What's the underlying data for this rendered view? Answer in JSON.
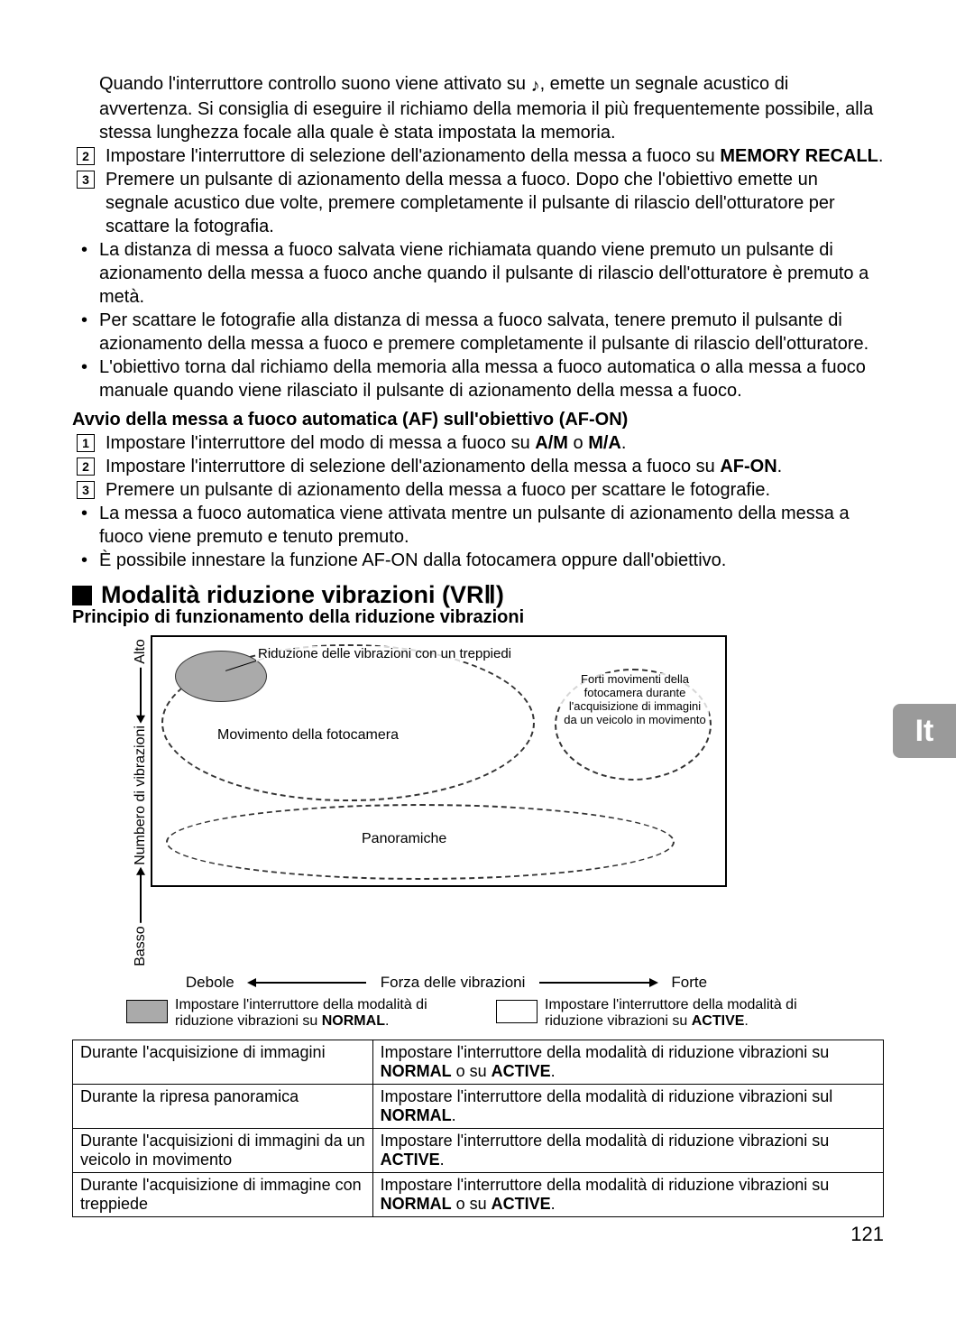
{
  "lang_tab": "It",
  "page_number": "121",
  "intro_para": {
    "line": "Quando l'interruttore controllo suono viene attivato su",
    "sound_glyph": "♪",
    "rest": ", emette un segnale acustico di avvertenza. Si consiglia di eseguire il richiamo della memoria il più frequentemente possibile, alla stessa lunghezza focale alla quale è stata impostata la memoria."
  },
  "item2": {
    "num": "2",
    "text": "Impostare l'interruttore di selezione dell'azionamento della messa a fuoco su ",
    "bold": "MEMORY RECALL",
    "after": "."
  },
  "item3": {
    "num": "3",
    "text": "Premere un pulsante di azionamento della messa a fuoco. Dopo che l'obiettivo emette un segnale acustico due volte, premere completamente il pulsante di rilascio dell'otturatore per scattare la fotografia."
  },
  "bullets_a": [
    "La distanza di messa a fuoco salvata viene richiamata quando viene premuto un pulsante di azionamento della messa a fuoco anche quando il pulsante di rilascio dell'otturatore è premuto a metà.",
    "Per scattare le fotografie alla distanza di messa a fuoco salvata, tenere premuto il pulsante di azionamento della messa a fuoco e premere completamente il pulsante di rilascio dell'otturatore.",
    "L'obiettivo torna dal richiamo della memoria alla messa a fuoco automatica o alla messa a fuoco manuale quando viene rilasciato il pulsante di azionamento della messa a fuoco."
  ],
  "subheading1": "Avvio della messa a fuoco automatica (AF) sull'obiettivo (AF-ON)",
  "afon_items": [
    {
      "num": "1",
      "pre": "Impostare l'interruttore del modo di messa a fuoco su ",
      "bold": "A/M",
      "mid": " o ",
      "bold2": "M/A",
      "after": "."
    },
    {
      "num": "2",
      "pre": "Impostare l'interruttore di selezione dell'azionamento della messa a fuoco su ",
      "bold": "AF-ON",
      "after": "."
    },
    {
      "num": "3",
      "pre": "Premere un pulsante di azionamento della messa a fuoco per scattare le fotografie.",
      "bold": "",
      "after": ""
    }
  ],
  "bullets_b": [
    "La messa a fuoco automatica viene attivata mentre un pulsante di azionamento della messa a fuoco viene premuto e tenuto premuto.",
    "È possibile innestare la funzione AF-ON dalla fotocamera oppure dall'obiettivo."
  ],
  "section_title": "Modalità riduzione vibrazioni (VRⅡ)",
  "section_subtitle": "Principio di funzionamento della riduzione vibrazioni",
  "diagram": {
    "y_label_high": "Alto",
    "y_label_mid": "Numbero di vibrazioni",
    "y_label_low": "Basso",
    "x_label_left": "Debole",
    "x_label_mid": "Forza delle vibrazioni",
    "x_label_right": "Forte",
    "label_tripod": "Riduzione delle vibrazioni con un treppiedi",
    "label_camera": "Movimento della fotocamera",
    "label_moving": "Forti movimenti della fotocamera durante l'acquisizione di immagini da un veicolo in movimento",
    "label_pan": "Panoramiche"
  },
  "legend": {
    "normal_pre": "Impostare l'interruttore della modalità di riduzione vibrazioni su ",
    "normal_bold": "NORMAL",
    "active_pre": "Impostare l'interruttore della modalità di riduzione vibrazioni su ",
    "active_bold": "ACTIVE"
  },
  "table": [
    {
      "c1": "Durante l'acquisizione di immagini",
      "c2_pre": "Impostare l'interruttore della modalità di riduzione vibrazioni su ",
      "c2_b1": "NORMAL",
      "c2_mid": " o su ",
      "c2_b2": "ACTIVE",
      "c2_after": "."
    },
    {
      "c1": "Durante la ripresa panoramica",
      "c2_pre": "Impostare l'interruttore della modalità di riduzione vibrazioni sul ",
      "c2_b1": "NORMAL",
      "c2_mid": "",
      "c2_b2": "",
      "c2_after": "."
    },
    {
      "c1": "Durante l'acquisizioni di immagini da un veicolo in movimento",
      "c2_pre": "Impostare l'interruttore della modalità di riduzione vibrazioni su ",
      "c2_b1": "ACTIVE",
      "c2_mid": "",
      "c2_b2": "",
      "c2_after": "."
    },
    {
      "c1": "Durante l'acquisizione di immagine con treppiede",
      "c2_pre": "Impostare l'interruttore della modalità di riduzione vibrazioni su ",
      "c2_b1": "NORMAL",
      "c2_mid": " o su ",
      "c2_b2": "ACTIVE",
      "c2_after": "."
    }
  ]
}
